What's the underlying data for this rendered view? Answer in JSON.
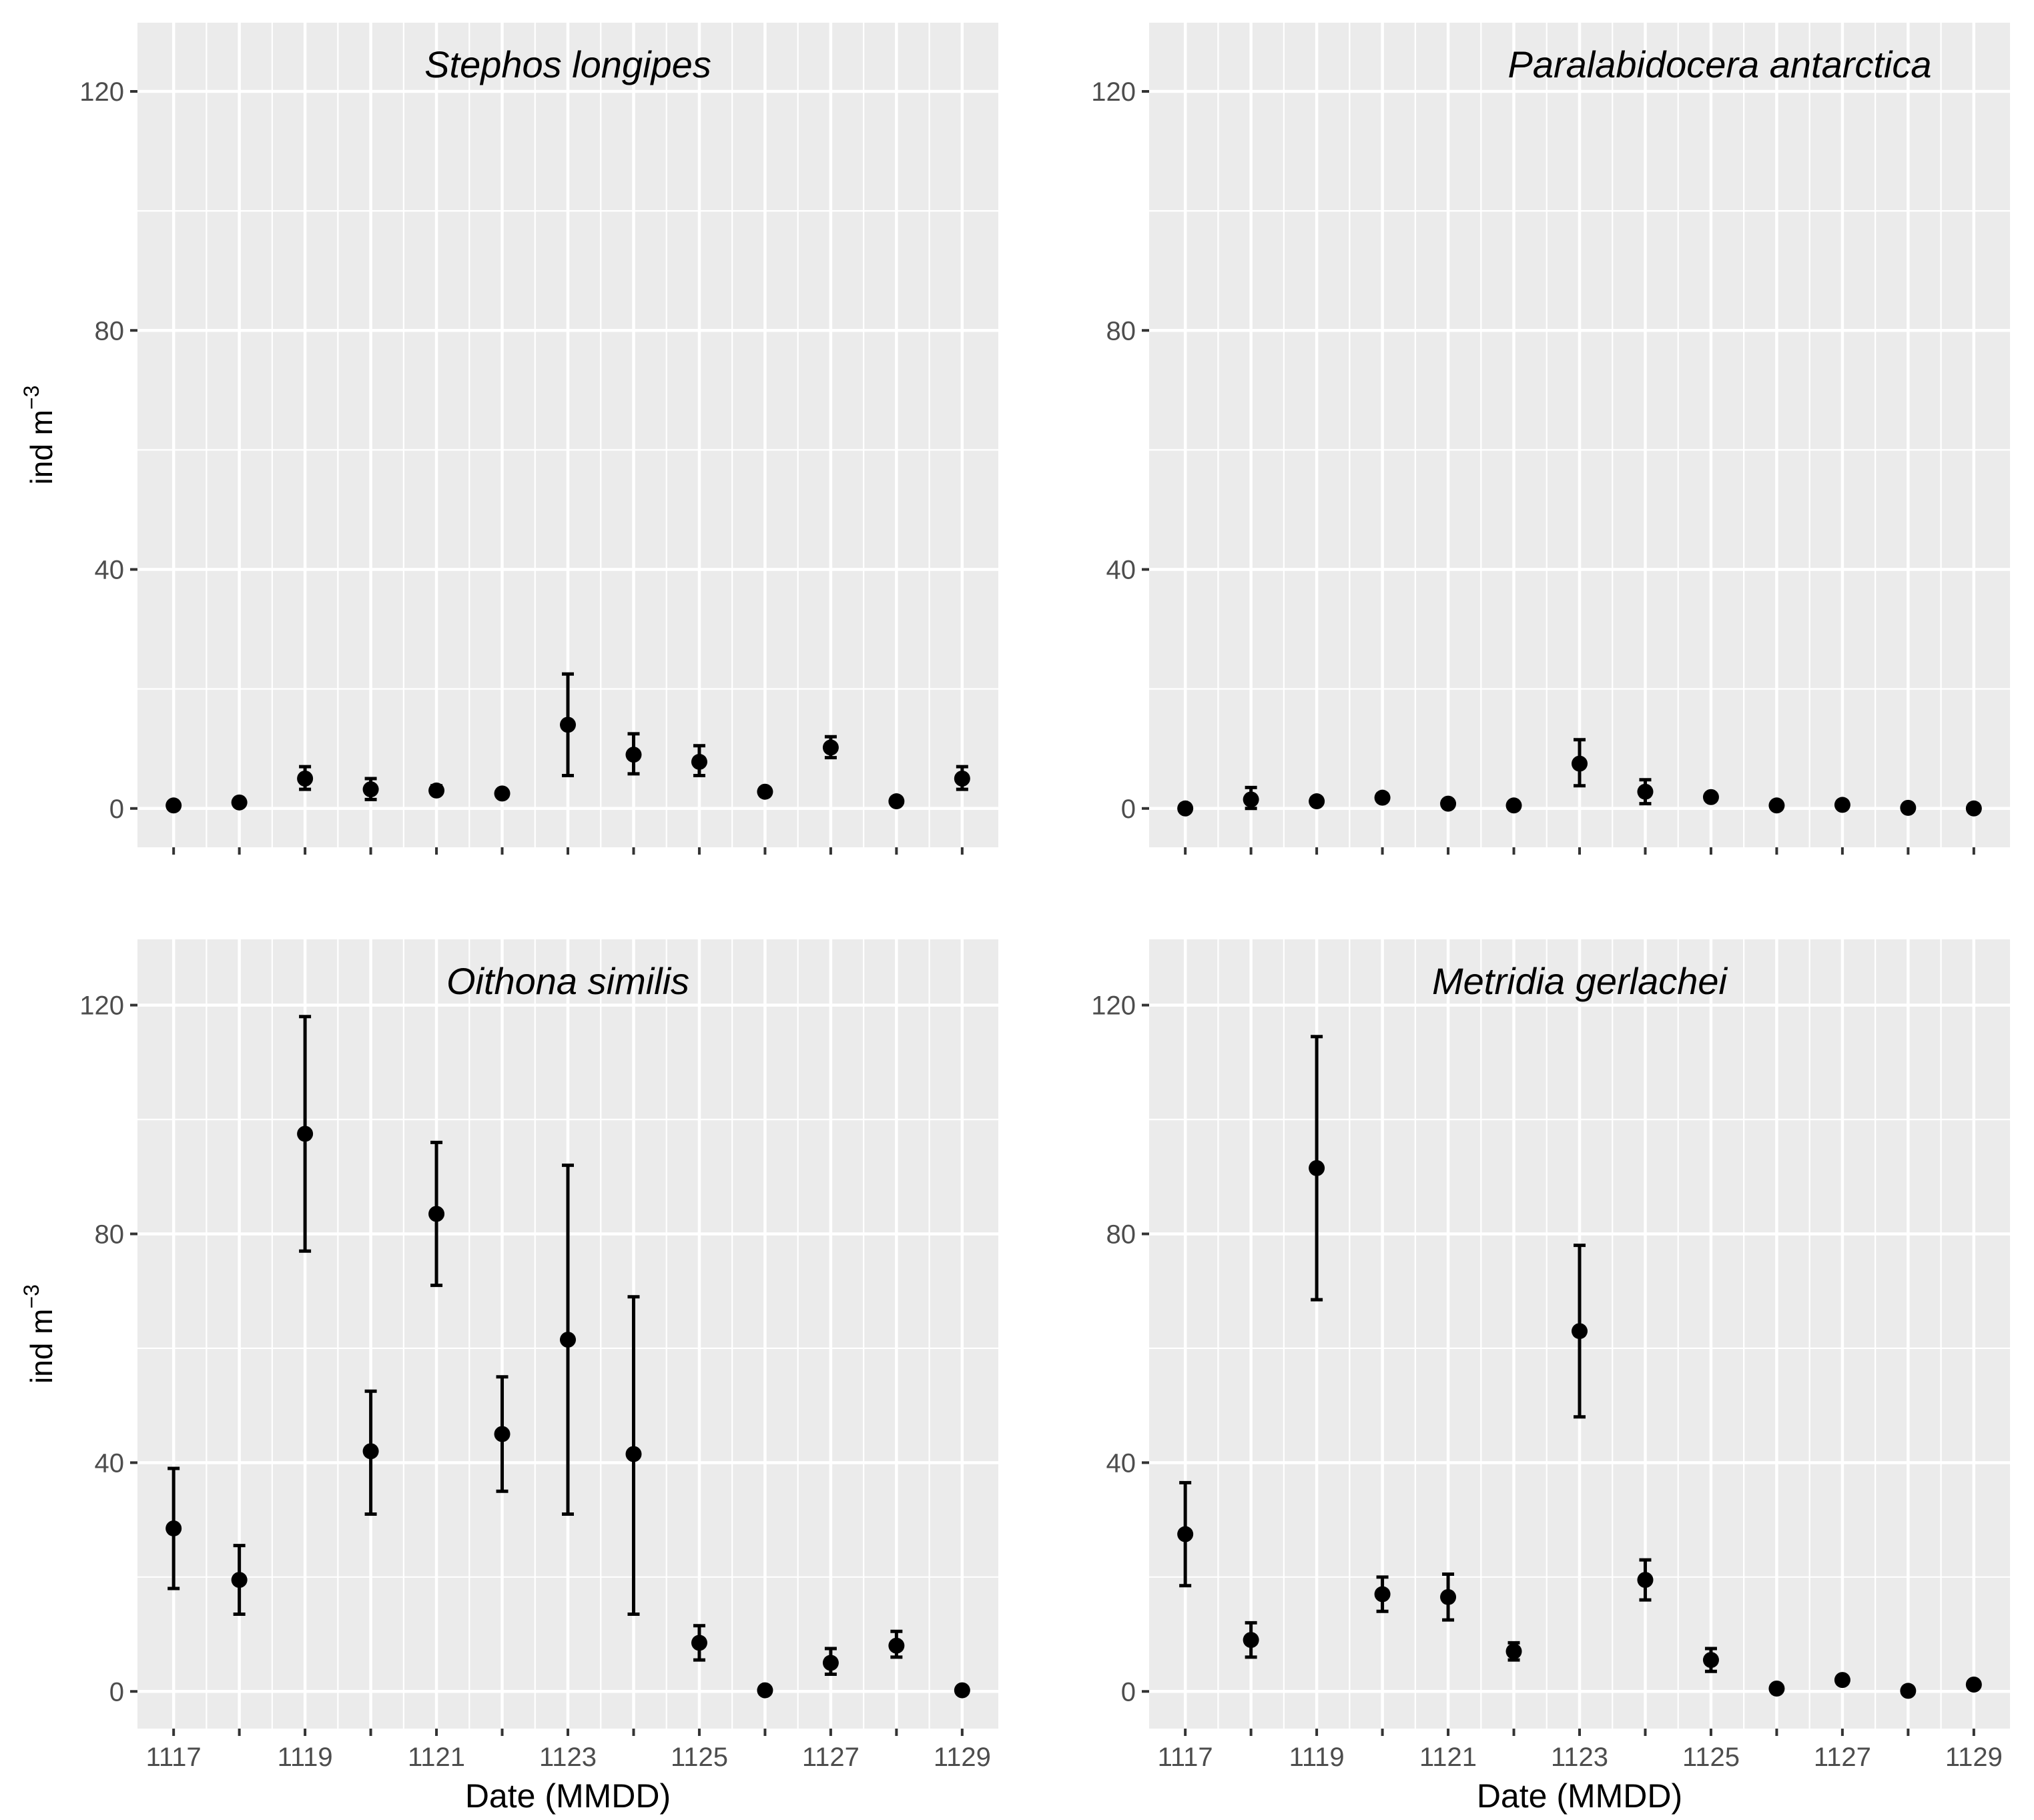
{
  "colors": {
    "panel_bg": "#EBEBEB",
    "grid": "#FFFFFF",
    "point": "#000000",
    "tick": "#333333"
  },
  "chart_data": [
    {
      "type": "scatter",
      "title": "Stephos longipes",
      "xlabel": "",
      "ylabel": "ind m",
      "ylabel_sup": "−3",
      "x": [
        1117,
        1118,
        1119,
        1120,
        1121,
        1122,
        1123,
        1124,
        1125,
        1126,
        1127,
        1128,
        1129
      ],
      "y": [
        0.5,
        1.0,
        5.0,
        3.2,
        3.0,
        2.5,
        14.0,
        9.0,
        7.8,
        2.8,
        10.2,
        1.2,
        5.0
      ],
      "y_low": [
        0.2,
        0.6,
        3.2,
        1.5,
        2.4,
        2.0,
        5.5,
        5.8,
        5.5,
        2.5,
        8.5,
        0.9,
        3.2
      ],
      "y_high": [
        0.8,
        1.4,
        7.0,
        5.0,
        3.8,
        3.0,
        22.5,
        12.5,
        10.5,
        3.2,
        12.0,
        1.6,
        7.0
      ],
      "xticks": [
        "",
        "",
        "",
        "",
        "",
        "",
        "",
        "",
        "",
        "",
        "",
        "",
        ""
      ],
      "yticks": [
        "0",
        "40",
        "80",
        "120"
      ],
      "ylim": [
        -6.5,
        131.5
      ],
      "xlim": [
        1116.45,
        1129.55
      ],
      "grid": true
    },
    {
      "type": "scatter",
      "title": "Paralabidocera antarctica",
      "xlabel": "",
      "ylabel": "",
      "ylabel_sup": "",
      "x": [
        1117,
        1118,
        1119,
        1120,
        1121,
        1122,
        1123,
        1124,
        1125,
        1126,
        1127,
        1128,
        1129
      ],
      "y": [
        0.0,
        1.5,
        1.2,
        1.8,
        0.8,
        0.5,
        7.5,
        2.8,
        1.9,
        0.5,
        0.6,
        0.1,
        0.0
      ],
      "y_low": [
        -0.2,
        0.0,
        0.9,
        1.5,
        0.5,
        0.3,
        3.8,
        0.8,
        1.6,
        0.3,
        0.3,
        -0.1,
        -0.2
      ],
      "y_high": [
        0.2,
        3.5,
        1.5,
        2.1,
        1.1,
        0.7,
        11.5,
        4.8,
        2.2,
        0.7,
        0.9,
        0.3,
        0.2
      ],
      "xticks": [
        "",
        "",
        "",
        "",
        "",
        "",
        "",
        "",
        "",
        "",
        "",
        "",
        ""
      ],
      "yticks": [
        "0",
        "40",
        "80",
        "120"
      ],
      "ylim": [
        -6.5,
        131.5
      ],
      "xlim": [
        1116.45,
        1129.55
      ],
      "grid": true
    },
    {
      "type": "scatter",
      "title": "Oithona similis",
      "xlabel": "Date (MMDD)",
      "ylabel": "ind m",
      "ylabel_sup": "−3",
      "x": [
        1117,
        1118,
        1119,
        1120,
        1121,
        1122,
        1123,
        1124,
        1125,
        1126,
        1127,
        1128,
        1129
      ],
      "y": [
        28.5,
        19.5,
        97.5,
        42.0,
        83.5,
        45.0,
        61.5,
        41.5,
        8.5,
        0.2,
        5.0,
        8.0,
        0.2
      ],
      "y_low": [
        18.0,
        13.5,
        77.0,
        31.0,
        71.0,
        35.0,
        31.0,
        13.5,
        5.5,
        0.0,
        3.0,
        6.0,
        0.0
      ],
      "y_high": [
        39.0,
        25.5,
        118.0,
        52.5,
        96.0,
        55.0,
        92.0,
        69.0,
        11.5,
        0.4,
        7.5,
        10.5,
        0.4
      ],
      "xticks": [
        "1117",
        "",
        "1119",
        "",
        "1121",
        "",
        "1123",
        "",
        "1125",
        "",
        "1127",
        "",
        "1129"
      ],
      "yticks": [
        "0",
        "40",
        "80",
        "120"
      ],
      "ylim": [
        -6.5,
        131.5
      ],
      "xlim": [
        1116.45,
        1129.55
      ],
      "grid": true
    },
    {
      "type": "scatter",
      "title": "Metridia gerlachei",
      "xlabel": "Date (MMDD)",
      "ylabel": "",
      "ylabel_sup": "",
      "x": [
        1117,
        1118,
        1119,
        1120,
        1121,
        1122,
        1123,
        1124,
        1125,
        1126,
        1127,
        1128,
        1129
      ],
      "y": [
        27.5,
        9.0,
        91.5,
        17.0,
        16.5,
        7.0,
        63.0,
        19.5,
        5.5,
        0.5,
        2.0,
        0.1,
        1.2
      ],
      "y_low": [
        18.5,
        6.0,
        68.5,
        14.0,
        12.5,
        5.5,
        48.0,
        16.0,
        3.5,
        0.3,
        1.8,
        -0.1,
        1.0
      ],
      "y_high": [
        36.5,
        12.0,
        114.5,
        20.0,
        20.5,
        8.5,
        78.0,
        23.0,
        7.5,
        0.7,
        2.2,
        0.3,
        1.4
      ],
      "xticks": [
        "1117",
        "",
        "1119",
        "",
        "1121",
        "",
        "1123",
        "",
        "1125",
        "",
        "1127",
        "",
        "1129"
      ],
      "yticks": [
        "0",
        "40",
        "80",
        "120"
      ],
      "ylim": [
        -6.5,
        131.5
      ],
      "xlim": [
        1116.45,
        1129.55
      ],
      "grid": true
    }
  ]
}
